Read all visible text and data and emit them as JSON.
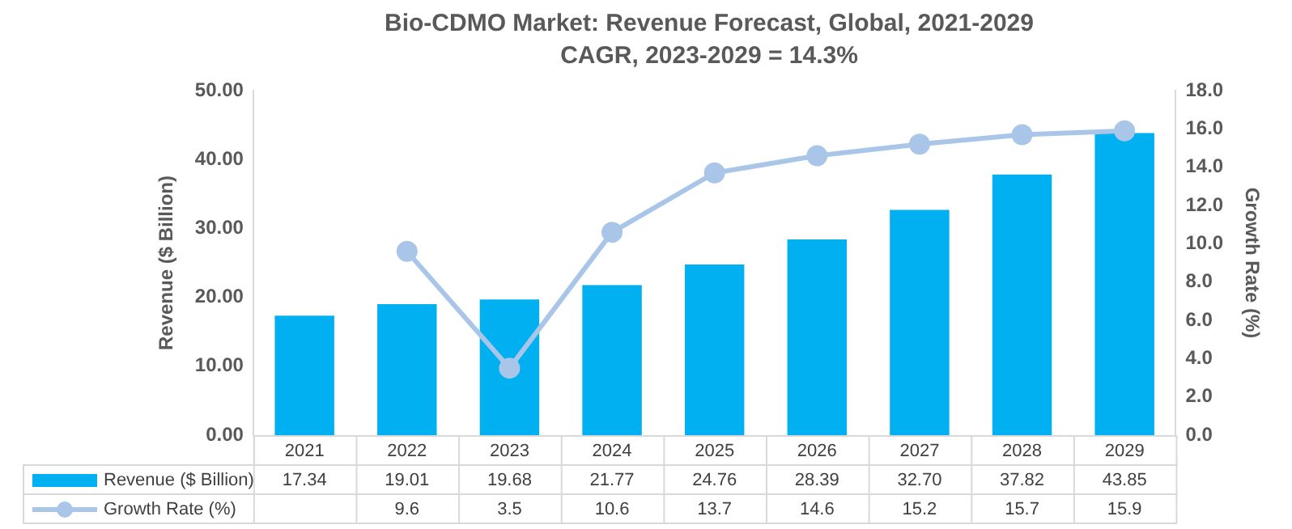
{
  "chart_data": {
    "type": "bar",
    "title": "Bio-CDMO Market: Revenue Forecast, Global, 2021-2029",
    "subtitle": "CAGR, 2023-2029 = 14.3%",
    "ylabel": "Revenue ($ Billion)",
    "y2label": "Growth Rate (%)",
    "categories": [
      "2021",
      "2022",
      "2023",
      "2024",
      "2025",
      "2026",
      "2027",
      "2028",
      "2029"
    ],
    "series": [
      {
        "name": "Revenue ($ Billion)",
        "color": "#00b0f0",
        "values": [
          17.34,
          19.01,
          19.68,
          21.77,
          24.76,
          28.39,
          32.7,
          37.82,
          43.85
        ],
        "value_labels": [
          "17.34",
          "19.01",
          "19.68",
          "21.77",
          "24.76",
          "28.39",
          "32.70",
          "37.82",
          "43.85"
        ]
      },
      {
        "name": "Growth Rate (%)",
        "type": "line",
        "axis": "y2",
        "color": "#a9c6e8",
        "marker": "circle",
        "values": [
          null,
          9.6,
          3.5,
          10.6,
          13.7,
          14.6,
          15.2,
          15.7,
          15.9
        ],
        "value_labels": [
          null,
          "9.6",
          "3.5",
          "10.6",
          "13.7",
          "14.6",
          "15.2",
          "15.7",
          "15.9"
        ]
      }
    ],
    "ylim": [
      0,
      50
    ],
    "yticks": [
      {
        "value": 0,
        "label": "0.00"
      },
      {
        "value": 10,
        "label": "10.00"
      },
      {
        "value": 20,
        "label": "20.00"
      },
      {
        "value": 30,
        "label": "30.00"
      },
      {
        "value": 40,
        "label": "40.00"
      },
      {
        "value": 50,
        "label": "50.00"
      }
    ],
    "y2lim": [
      0,
      18
    ],
    "y2ticks": [
      {
        "value": 0,
        "label": "0.0"
      },
      {
        "value": 2,
        "label": "2.0"
      },
      {
        "value": 4,
        "label": "4.0"
      },
      {
        "value": 6,
        "label": "6.0"
      },
      {
        "value": 8,
        "label": "8.0"
      },
      {
        "value": 10,
        "label": "10.0"
      },
      {
        "value": 12,
        "label": "12.0"
      },
      {
        "value": 14,
        "label": "14.0"
      },
      {
        "value": 16,
        "label": "16.0"
      },
      {
        "value": 18,
        "label": "18.0"
      }
    ],
    "grid": false,
    "legend": "bottom"
  }
}
